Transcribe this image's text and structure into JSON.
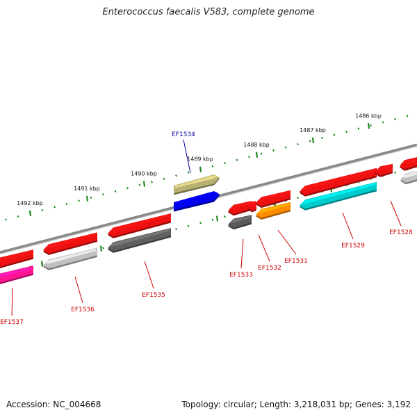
{
  "title": "Enterococcus faecalis V583, complete genome",
  "footer": {
    "accession": "Accession: NC_004668",
    "summary": "Topology: circular; Length: 3,218,031 bp; Genes: 3,192"
  },
  "colors": {
    "backbone": "#8a8a8a",
    "tick": "#1f8a1f",
    "forward": "#ee1111",
    "label_default": "#cc0000",
    "label_highlight": "#000099"
  },
  "scale_ticks": [
    {
      "label": "1492 kbp"
    },
    {
      "label": "1491 kbp"
    },
    {
      "label": "1490 kbp"
    },
    {
      "label": "1489 kbp"
    },
    {
      "label": "1488 kbp"
    },
    {
      "label": "1487 kbp"
    },
    {
      "label": "1486 kbp"
    }
  ],
  "genes": [
    {
      "name": "EF1537",
      "strand": "-",
      "feature_color": "#ff1493"
    },
    {
      "name": "EF1536",
      "strand": "-",
      "feature_color": "#c0c0c0"
    },
    {
      "name": "EF1535",
      "strand": "-",
      "feature_color": "#606060"
    },
    {
      "name": "EF1534",
      "strand": "+",
      "feature_color": "#0000ee",
      "highlight": true
    },
    {
      "name": "EF1533",
      "strand": "-",
      "feature_color": "#5a5a5a"
    },
    {
      "name": "EF1532",
      "strand": "-",
      "feature_color": "#ee1111"
    },
    {
      "name": "EF1531",
      "strand": "-",
      "feature_color": "#ff8c00"
    },
    {
      "name": "EF1529",
      "strand": "-",
      "feature_color": "#00cccc"
    },
    {
      "name": "EF1528",
      "strand": "-",
      "feature_color": "#c0c0c0"
    }
  ]
}
